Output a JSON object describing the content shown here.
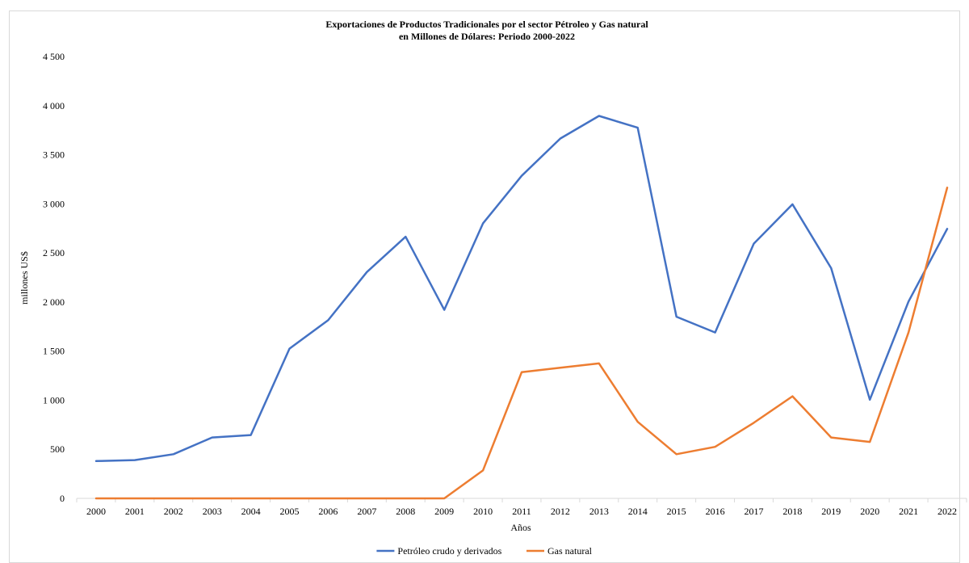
{
  "chart_data": {
    "type": "line",
    "title": "Exportaciones de Productos Tradicionales por el sector Pétroleo y Gas natural",
    "subtitle": "en Millones de Dólares: Periodo 2000-2022",
    "xlabel": "Años",
    "ylabel": "millones US$",
    "ylim": [
      0,
      4500
    ],
    "yticks": [
      0,
      500,
      1000,
      1500,
      2000,
      2500,
      3000,
      3500,
      4000,
      4500
    ],
    "ytick_labels": [
      "0",
      "500",
      "1 000",
      "1 500",
      "2 000",
      "2 500",
      "3 000",
      "3 500",
      "4 000",
      "4 500"
    ],
    "grid": false,
    "legend_position": "bottom",
    "categories": [
      "2000",
      "2001",
      "2002",
      "2003",
      "2004",
      "2005",
      "2006",
      "2007",
      "2008",
      "2009",
      "2010",
      "2011",
      "2012",
      "2013",
      "2014",
      "2015",
      "2016",
      "2017",
      "2018",
      "2019",
      "2020",
      "2021",
      "2022"
    ],
    "series": [
      {
        "name": "Petróleo crudo y derivados",
        "color": "#4472c4",
        "values": [
          380,
          390,
          450,
          620,
          645,
          1525,
          1815,
          2305,
          2665,
          1920,
          2800,
          3285,
          3665,
          3895,
          3775,
          1850,
          1690,
          2595,
          2995,
          2345,
          1005,
          2005,
          2745
        ]
      },
      {
        "name": "Gas natural",
        "color": "#ed7d31",
        "values": [
          0,
          0,
          0,
          0,
          0,
          0,
          0,
          0,
          0,
          0,
          285,
          1285,
          1330,
          1375,
          780,
          450,
          525,
          770,
          1040,
          620,
          575,
          1690,
          3165
        ]
      }
    ]
  }
}
